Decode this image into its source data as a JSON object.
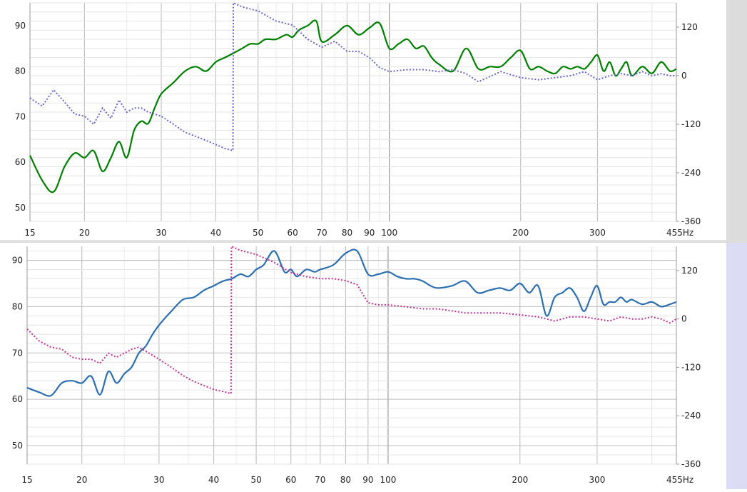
{
  "chart_data": [
    {
      "type": "line",
      "x_unit": "Hz",
      "x_scale": "log",
      "xlim": [
        15,
        455
      ],
      "x_ticks": [
        "15",
        "20",
        "30",
        "40",
        "50",
        "60",
        "70",
        "80",
        "90",
        "100",
        "200",
        "300",
        "455Hz"
      ],
      "x_tick_values": [
        15,
        20,
        30,
        40,
        50,
        60,
        70,
        80,
        90,
        100,
        200,
        300,
        455
      ],
      "ylim_left": [
        47,
        95
      ],
      "ylim_right": [
        -360,
        180
      ],
      "y_ticks_left": [
        90,
        80,
        70,
        60,
        50
      ],
      "y_ticks_right": [
        120,
        0,
        -120,
        -240,
        -360
      ],
      "grid": true,
      "series": [
        {
          "axis": "left",
          "style": "solid",
          "color": "#008000",
          "x": [
            15,
            16,
            17,
            18,
            19,
            20,
            21,
            22,
            23,
            24,
            25,
            26,
            27,
            28,
            29,
            30,
            32,
            34,
            36,
            38,
            40,
            42,
            44,
            46,
            48,
            50,
            52,
            55,
            58,
            60,
            62,
            65,
            68,
            70,
            75,
            80,
            85,
            90,
            95,
            100,
            105,
            110,
            115,
            120,
            125,
            130,
            140,
            150,
            160,
            170,
            180,
            190,
            200,
            210,
            220,
            230,
            240,
            250,
            260,
            270,
            280,
            290,
            300,
            310,
            320,
            330,
            340,
            350,
            360,
            380,
            400,
            420,
            440,
            455
          ],
          "values": [
            61.5,
            56,
            53.5,
            59,
            62,
            61,
            62.5,
            58,
            61,
            64.5,
            61,
            67,
            69,
            68.5,
            72,
            75,
            77.5,
            80,
            81,
            80,
            82,
            83,
            84,
            85,
            86,
            86,
            87,
            87,
            88,
            87.5,
            89,
            90,
            91,
            86.5,
            88,
            90,
            88,
            89.5,
            90.5,
            85,
            86,
            87,
            85,
            85.5,
            83,
            81.5,
            80,
            85,
            80.5,
            81,
            81,
            83,
            84.5,
            80.5,
            81,
            80,
            79.5,
            81,
            80.5,
            81,
            80.5,
            82,
            83.5,
            80,
            82,
            79,
            80.5,
            82,
            79,
            81,
            79.5,
            82,
            80,
            80.5
          ]
        },
        {
          "axis": "right",
          "style": "dotted",
          "color": "#6666cc",
          "x": [
            15,
            16,
            17,
            18,
            19,
            20,
            21,
            22,
            23,
            24,
            25,
            26,
            27,
            28,
            29,
            30,
            32,
            34,
            36,
            38,
            40,
            42,
            43.8,
            43.9,
            46,
            50,
            55,
            60,
            65,
            70,
            75,
            80,
            85,
            90,
            95,
            100,
            110,
            120,
            130,
            140,
            150,
            160,
            180,
            200,
            220,
            240,
            260,
            280,
            300,
            320,
            340,
            360,
            380,
            400,
            420,
            440,
            455
          ],
          "values": [
            -55,
            -75,
            -35,
            -65,
            -95,
            -100,
            -120,
            -80,
            -105,
            -60,
            -90,
            -80,
            -80,
            -90,
            -95,
            -100,
            -120,
            -140,
            -150,
            -160,
            -170,
            -180,
            -185,
            180,
            170,
            160,
            135,
            125,
            90,
            70,
            85,
            60,
            60,
            45,
            20,
            10,
            15,
            15,
            10,
            15,
            5,
            -15,
            10,
            -5,
            -10,
            -5,
            0,
            10,
            -10,
            0,
            5,
            0,
            10,
            0,
            5,
            0,
            0
          ]
        }
      ]
    },
    {
      "type": "line",
      "x_unit": "Hz",
      "x_scale": "log",
      "xlim": [
        15,
        455
      ],
      "x_ticks": [
        "15",
        "20",
        "30",
        "40",
        "50",
        "60",
        "70",
        "80",
        "90",
        "100",
        "200",
        "300",
        "455Hz"
      ],
      "x_tick_values": [
        15,
        20,
        30,
        40,
        50,
        60,
        70,
        80,
        90,
        100,
        200,
        300,
        455
      ],
      "ylim_left": [
        46,
        93
      ],
      "ylim_right": [
        -360,
        180
      ],
      "y_ticks_left": [
        90,
        80,
        70,
        60,
        50
      ],
      "y_ticks_right": [
        120,
        0,
        -120,
        -240,
        -360
      ],
      "grid": true,
      "series": [
        {
          "axis": "left",
          "style": "solid",
          "color": "#2c6fb0",
          "x": [
            15,
            16,
            17,
            18,
            19,
            20,
            21,
            22,
            23,
            24,
            25,
            26,
            27,
            28,
            29,
            30,
            32,
            34,
            36,
            38,
            40,
            42,
            44,
            46,
            48,
            50,
            52,
            55,
            58,
            60,
            62,
            65,
            68,
            70,
            75,
            80,
            85,
            90,
            95,
            100,
            105,
            110,
            115,
            120,
            125,
            130,
            140,
            150,
            160,
            170,
            180,
            190,
            200,
            210,
            220,
            230,
            240,
            250,
            260,
            270,
            280,
            290,
            300,
            310,
            320,
            330,
            340,
            350,
            360,
            380,
            400,
            420,
            440,
            455
          ],
          "values": [
            62.5,
            61.5,
            60.8,
            63.5,
            64,
            63.5,
            65,
            61,
            66,
            63.5,
            65.5,
            67,
            70,
            71.5,
            74,
            76,
            79,
            81.5,
            82,
            83.5,
            84.5,
            85.5,
            86,
            87,
            86.5,
            88,
            89,
            92,
            87.5,
            88,
            86.5,
            88,
            87.5,
            88,
            89,
            91.5,
            92,
            87,
            87,
            87.5,
            86.5,
            86,
            86,
            85.5,
            84.5,
            84,
            84.5,
            85.5,
            83,
            83.5,
            84,
            83.5,
            85,
            83,
            84.5,
            78,
            82,
            83,
            84,
            82,
            79,
            82,
            84.5,
            80.5,
            81,
            81,
            82,
            81,
            81.5,
            80.5,
            81,
            80,
            80.5,
            81
          ]
        },
        {
          "axis": "right",
          "style": "dotted",
          "color": "#c0308f",
          "x": [
            15,
            16,
            17,
            18,
            19,
            20,
            21,
            22,
            23,
            24,
            25,
            26,
            27,
            28,
            29,
            30,
            32,
            34,
            36,
            38,
            40,
            42,
            43.8,
            43.9,
            46,
            50,
            55,
            60,
            65,
            70,
            75,
            80,
            85,
            90,
            95,
            100,
            110,
            120,
            130,
            140,
            150,
            160,
            180,
            200,
            220,
            240,
            260,
            280,
            300,
            320,
            340,
            360,
            380,
            400,
            420,
            440,
            455
          ],
          "values": [
            -25,
            -55,
            -70,
            -75,
            -95,
            -100,
            -100,
            -110,
            -85,
            -95,
            -85,
            -75,
            -70,
            -80,
            -90,
            -100,
            -120,
            -140,
            -155,
            -165,
            -175,
            -180,
            -185,
            180,
            170,
            160,
            140,
            115,
            105,
            100,
            100,
            95,
            85,
            40,
            35,
            35,
            30,
            25,
            25,
            20,
            15,
            15,
            15,
            10,
            5,
            -5,
            5,
            5,
            0,
            -5,
            5,
            0,
            0,
            5,
            0,
            -10,
            0
          ]
        }
      ]
    }
  ]
}
